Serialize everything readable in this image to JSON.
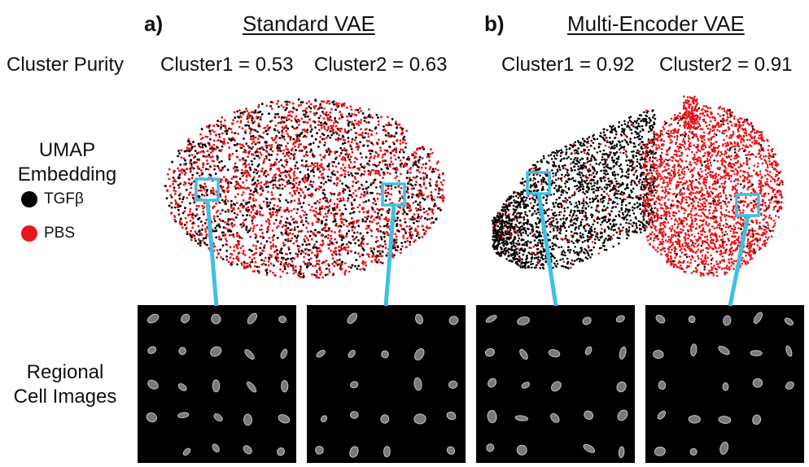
{
  "row_labels": {
    "purity": "Cluster Purity",
    "umap_line1": "UMAP",
    "umap_line2": "Embedding",
    "images_line1": "Regional",
    "images_line2": "Cell Images"
  },
  "legend": [
    {
      "label": "TGFβ",
      "color": "#000000"
    },
    {
      "label": "PBS",
      "color": "#e8141b"
    }
  ],
  "panels": [
    {
      "letter": "a)",
      "title": "Standard VAE",
      "cluster1": "Cluster1 = 0.53",
      "cluster2": "Cluster2 = 0.63"
    },
    {
      "letter": "b)",
      "title": "Multi-Encoder VAE",
      "cluster1": "Cluster1 = 0.92",
      "cluster2": "Cluster2 = 0.91"
    }
  ],
  "colors": {
    "highlight_box": "#3ec1e3",
    "tgfb": "#000000",
    "pbs": "#e8141b",
    "cell_tile_bg": "#000000"
  }
}
